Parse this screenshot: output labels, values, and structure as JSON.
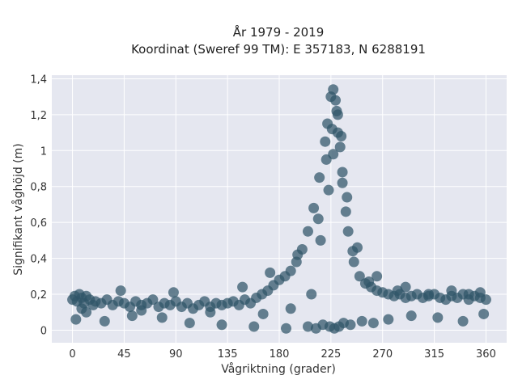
{
  "chart_data": {
    "type": "scatter",
    "title": [
      "År 1979 - 2019",
      "Koordinat (Sweref 99 TM): E 357183, N 6288191"
    ],
    "xlabel": "Vågriktning (grader)",
    "ylabel": "Signifikant våghöjd (m)",
    "xlim": [
      -18,
      378
    ],
    "ylim": [
      -0.07,
      1.42
    ],
    "x_ticks": [
      0,
      45,
      90,
      135,
      180,
      225,
      270,
      315,
      360
    ],
    "x_tick_labels": [
      "0",
      "45",
      "90",
      "135",
      "180",
      "225",
      "270",
      "315",
      "360"
    ],
    "y_ticks": [
      0,
      0.2,
      0.4,
      0.6,
      0.8,
      1.0,
      1.2,
      1.4
    ],
    "y_tick_labels": [
      "0",
      "0,2",
      "0,4",
      "0,6",
      "0,8",
      "1",
      "1,2",
      "1,4"
    ],
    "grid": true,
    "colors": {
      "marker": "#2f5568",
      "plot_background": "#e5e7f0"
    },
    "series": [
      {
        "x": [
          0,
          2,
          4,
          6,
          8,
          10,
          12,
          15,
          18,
          20,
          25,
          30,
          35,
          40,
          45,
          50,
          55,
          60,
          65,
          70,
          75,
          80,
          85,
          90,
          95,
          100,
          105,
          110,
          115,
          120,
          125,
          130,
          135,
          140,
          145,
          150,
          155,
          160,
          165,
          170,
          175,
          180,
          185,
          190,
          195,
          200,
          205,
          210,
          215,
          220,
          222,
          225,
          227,
          229,
          231,
          233,
          235,
          238,
          240,
          245,
          250,
          255,
          260,
          265,
          270,
          275,
          280,
          285,
          290,
          295,
          300,
          305,
          310,
          315,
          320,
          325,
          330,
          335,
          340,
          345,
          350,
          355,
          360,
          3,
          28,
          52,
          78,
          102,
          130,
          158,
          186,
          205,
          212,
          218,
          224,
          228,
          232,
          236,
          242,
          252,
          262,
          275,
          295,
          318,
          340,
          358,
          12,
          42,
          88,
          148,
          172,
          196,
          214,
          221,
          226,
          230,
          234,
          239,
          248,
          265,
          290,
          330,
          355,
          8,
          60,
          120,
          166,
          190,
          208,
          216,
          223,
          227,
          231,
          235,
          244,
          258,
          283,
          310,
          345
        ],
        "y": [
          0.17,
          0.19,
          0.16,
          0.2,
          0.18,
          0.15,
          0.19,
          0.17,
          0.14,
          0.16,
          0.15,
          0.17,
          0.14,
          0.16,
          0.15,
          0.13,
          0.16,
          0.14,
          0.15,
          0.17,
          0.13,
          0.15,
          0.14,
          0.16,
          0.13,
          0.15,
          0.12,
          0.14,
          0.16,
          0.13,
          0.15,
          0.14,
          0.15,
          0.16,
          0.14,
          0.17,
          0.15,
          0.18,
          0.2,
          0.22,
          0.25,
          0.28,
          0.3,
          0.33,
          0.38,
          0.45,
          0.55,
          0.68,
          0.85,
          1.05,
          1.15,
          1.3,
          1.34,
          1.28,
          1.2,
          1.02,
          0.88,
          0.66,
          0.55,
          0.38,
          0.3,
          0.26,
          0.24,
          0.22,
          0.21,
          0.2,
          0.19,
          0.2,
          0.18,
          0.19,
          0.2,
          0.18,
          0.19,
          0.2,
          0.18,
          0.17,
          0.19,
          0.18,
          0.2,
          0.17,
          0.19,
          0.18,
          0.17,
          0.06,
          0.05,
          0.08,
          0.07,
          0.04,
          0.03,
          0.02,
          0.01,
          0.02,
          0.01,
          0.03,
          0.02,
          0.01,
          0.02,
          0.04,
          0.03,
          0.05,
          0.04,
          0.06,
          0.08,
          0.07,
          0.05,
          0.09,
          0.1,
          0.22,
          0.21,
          0.24,
          0.32,
          0.42,
          0.62,
          0.95,
          1.12,
          1.22,
          1.08,
          0.74,
          0.46,
          0.3,
          0.24,
          0.22,
          0.21,
          0.12,
          0.11,
          0.1,
          0.09,
          0.12,
          0.2,
          0.5,
          0.78,
          0.98,
          1.1,
          0.82,
          0.44,
          0.27,
          0.22,
          0.2,
          0.2
        ]
      }
    ]
  }
}
